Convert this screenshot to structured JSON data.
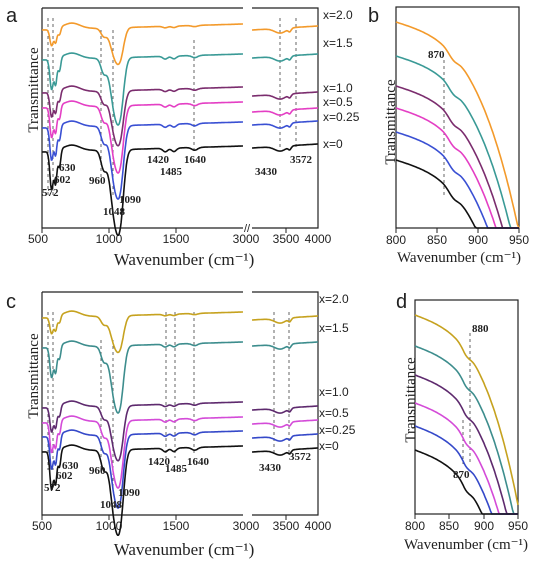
{
  "figure": {
    "panels": [
      {
        "id": "a",
        "letter": "a",
        "ylabel": "Transmittance",
        "xlabel": "Wavenumber (cm⁻¹)",
        "x_ticks_left": [
          "500",
          "1000",
          "1500",
          "3000"
        ],
        "x_ticks_right": [
          "3000",
          "3500",
          "4000"
        ],
        "series_labels": [
          "x=2.0",
          "x=1.5",
          "x=1.0",
          "x=0.5",
          "x=0.25",
          "x=0"
        ],
        "peak_labels": [
          "572",
          "602",
          "630",
          "960",
          "1048",
          "1090",
          "1420",
          "1485",
          "1640",
          "3430",
          "3572"
        ]
      },
      {
        "id": "b",
        "letter": "b",
        "ylabel": "Transmittance",
        "xlabel": "Wavenumber (cm⁻¹)",
        "x_ticks": [
          "800",
          "850",
          "900",
          "950"
        ],
        "peak_labels": [
          "870"
        ]
      },
      {
        "id": "c",
        "letter": "c",
        "ylabel": "Transmittance",
        "xlabel": "Wavenumber (cm⁻¹)",
        "x_ticks_left": [
          "500",
          "1000",
          "1500",
          "3000"
        ],
        "x_ticks_right": [
          "3000",
          "3500",
          "4000"
        ],
        "series_labels": [
          "x=2.0",
          "x=1.5",
          "x=1.0",
          "x=0.5",
          "x=0.25",
          "x=0"
        ],
        "peak_labels": [
          "572",
          "602",
          "630",
          "960",
          "1048",
          "1090",
          "1420",
          "1485",
          "1640",
          "3430",
          "3572"
        ]
      },
      {
        "id": "d",
        "letter": "d",
        "ylabel": "Transmittance",
        "xlabel": "Wavenumber (cm⁻¹)",
        "x_ticks": [
          "800",
          "850",
          "900",
          "950"
        ],
        "peak_labels": [
          "880",
          "870"
        ]
      }
    ]
  },
  "chart_data": [
    {
      "type": "line",
      "panel": "a",
      "xlabel": "Wavenumber (cm⁻¹)",
      "ylabel": "Transmittance",
      "xlim_left": [
        500,
        2000
      ],
      "xlim_right": [
        3000,
        4000
      ],
      "axis_break": true,
      "series": [
        {
          "name": "x=2.0",
          "color": "#F39A2B"
        },
        {
          "name": "x=1.5",
          "color": "#3A9A96"
        },
        {
          "name": "x=1.0",
          "color": "#7B2D6E"
        },
        {
          "name": "x=0.5",
          "color": "#E43FC4"
        },
        {
          "name": "x=0.25",
          "color": "#3A50D3"
        },
        {
          "name": "x=0",
          "color": "#111111"
        }
      ],
      "annotations": [
        572,
        602,
        630,
        960,
        1048,
        1090,
        1420,
        1485,
        1640,
        3430,
        3572
      ]
    },
    {
      "type": "line",
      "panel": "b",
      "xlabel": "Wavenumber (cm⁻¹)",
      "ylabel": "Transmittance",
      "xlim": [
        800,
        950
      ],
      "series": [
        {
          "name": "x=2.0",
          "color": "#F39A2B"
        },
        {
          "name": "x=1.5",
          "color": "#3A9A96"
        },
        {
          "name": "x=1.0",
          "color": "#7B2D6E"
        },
        {
          "name": "x=0.5",
          "color": "#E43FC4"
        },
        {
          "name": "x=0.25",
          "color": "#3A50D3"
        },
        {
          "name": "x=0",
          "color": "#111111"
        }
      ],
      "annotations": [
        870
      ]
    },
    {
      "type": "line",
      "panel": "c",
      "xlabel": "Wavenumber (cm⁻¹)",
      "ylabel": "Transmittance",
      "xlim_left": [
        500,
        2000
      ],
      "xlim_right": [
        3000,
        4000
      ],
      "axis_break": true,
      "series": [
        {
          "name": "x=2.0",
          "color": "#C6A21F"
        },
        {
          "name": "x=1.5",
          "color": "#3D8D8D"
        },
        {
          "name": "x=1.0",
          "color": "#5E2A6E"
        },
        {
          "name": "x=0.5",
          "color": "#D44BD8"
        },
        {
          "name": "x=0.25",
          "color": "#3549C9"
        },
        {
          "name": "x=0",
          "color": "#111111"
        }
      ],
      "annotations": [
        572,
        602,
        630,
        960,
        1048,
        1090,
        1420,
        1485,
        1640,
        3430,
        3572
      ]
    },
    {
      "type": "line",
      "panel": "d",
      "xlabel": "Wavenumber (cm⁻¹)",
      "ylabel": "Transmittance",
      "xlim": [
        800,
        950
      ],
      "series": [
        {
          "name": "x=2.0",
          "color": "#C6A21F"
        },
        {
          "name": "x=1.5",
          "color": "#3D8D8D"
        },
        {
          "name": "x=1.0",
          "color": "#5E2A6E"
        },
        {
          "name": "x=0.5",
          "color": "#D44BD8"
        },
        {
          "name": "x=0.25",
          "color": "#3549C9"
        },
        {
          "name": "x=0",
          "color": "#111111"
        }
      ],
      "annotations": [
        880,
        870
      ]
    }
  ]
}
